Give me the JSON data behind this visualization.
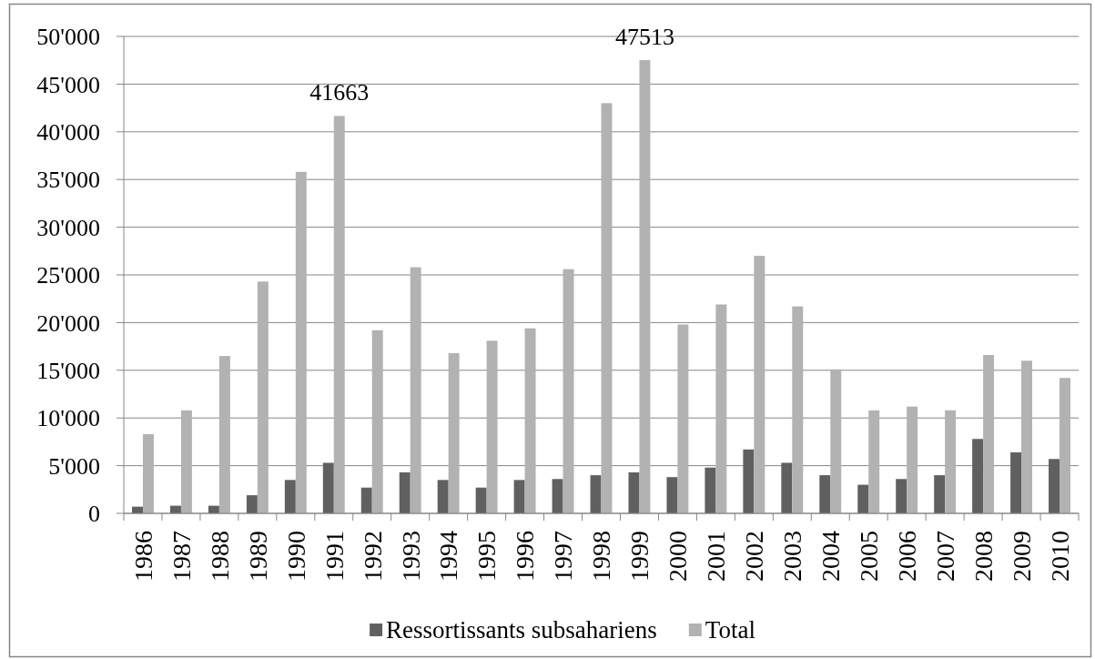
{
  "chart_data": {
    "type": "bar",
    "categories": [
      "1986",
      "1987",
      "1988",
      "1989",
      "1990",
      "1991",
      "1992",
      "1993",
      "1994",
      "1995",
      "1996",
      "1997",
      "1998",
      "1999",
      "2000",
      "2001",
      "2002",
      "2003",
      "2004",
      "2005",
      "2006",
      "2007",
      "2008",
      "2009",
      "2010"
    ],
    "series": [
      {
        "name": "Ressortissants subsahariens",
        "color": "#606060",
        "values": [
          700,
          800,
          800,
          1900,
          3500,
          5300,
          2700,
          4300,
          3500,
          2700,
          3500,
          3600,
          4000,
          4300,
          3800,
          4800,
          6700,
          5300,
          4000,
          3000,
          3600,
          4000,
          7800,
          6400,
          5700
        ]
      },
      {
        "name": "Total",
        "color": "#b2b2b2",
        "values": [
          8300,
          10800,
          16500,
          24300,
          35800,
          41663,
          19200,
          25800,
          16800,
          18100,
          19400,
          25600,
          43000,
          47513,
          19800,
          21900,
          27000,
          21700,
          15100,
          10800,
          11200,
          10800,
          16600,
          16000,
          14200
        ],
        "value_labels": [
          null,
          null,
          null,
          null,
          null,
          "41663",
          null,
          null,
          null,
          null,
          null,
          null,
          null,
          "47513",
          null,
          null,
          null,
          null,
          null,
          null,
          null,
          null,
          null,
          null,
          null
        ]
      }
    ],
    "ylim": [
      0,
      50000
    ],
    "yticks": [
      0,
      {
        "value": 5000,
        "label": "5'000"
      },
      {
        "value": 10000,
        "label": "10'000"
      },
      {
        "value": 15000,
        "label": "15'000"
      },
      {
        "value": 20000,
        "label": "20'000"
      },
      {
        "value": 25000,
        "label": "25'000"
      },
      {
        "value": 30000,
        "label": "30'000"
      },
      {
        "value": 35000,
        "label": "35'000"
      },
      {
        "value": 40000,
        "label": "40'000"
      },
      {
        "value": 45000,
        "label": "45'000"
      },
      {
        "value": 50000,
        "label": "50'000"
      }
    ],
    "grid": "y",
    "legend": "bottom"
  }
}
